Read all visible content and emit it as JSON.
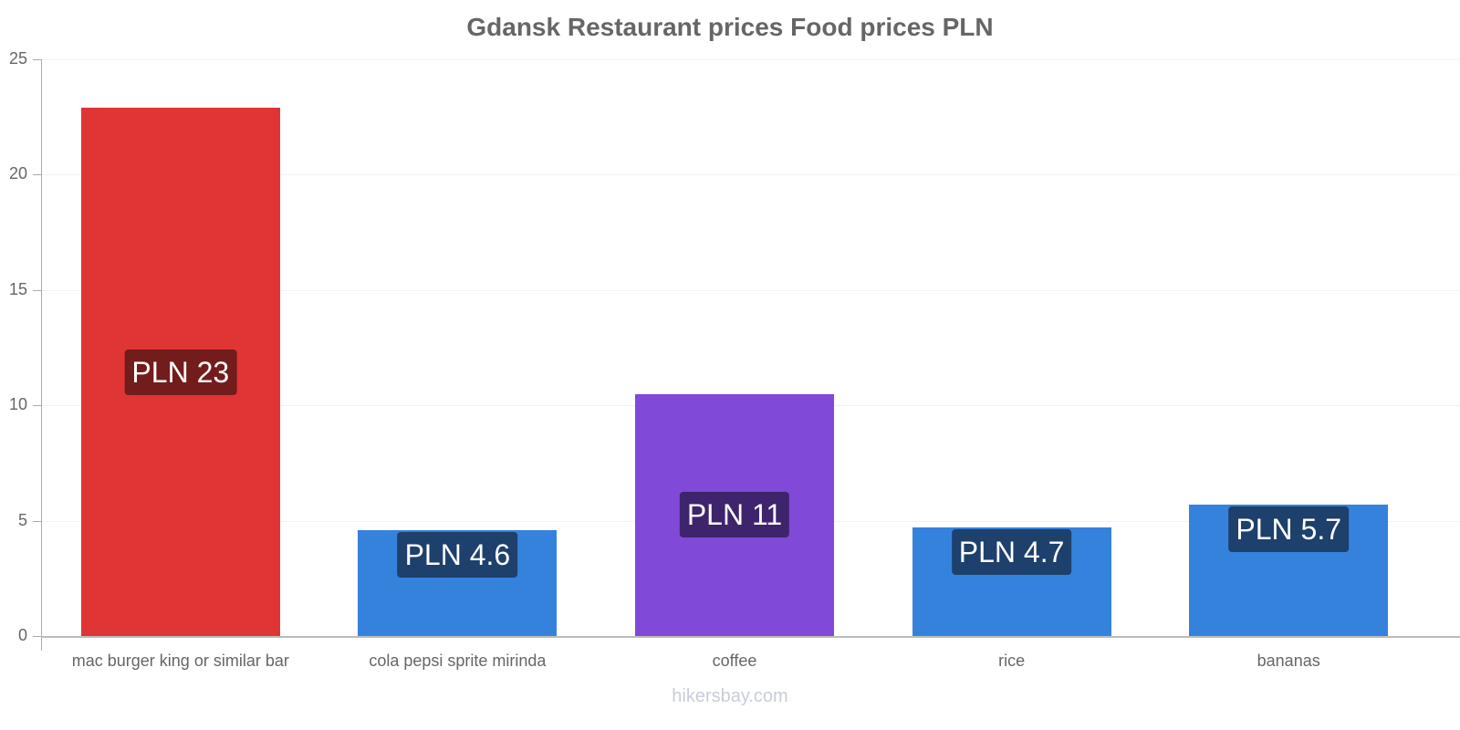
{
  "title": "Gdansk Restaurant prices Food prices PLN",
  "footer": "hikersbay.com",
  "y_ticks": [
    "0",
    "5",
    "10",
    "15",
    "20",
    "25"
  ],
  "bars": [
    {
      "category": "mac burger king or similar bar",
      "value": 22.9,
      "label": "PLN 23",
      "color": "#e03535",
      "label_bg": "#731c1c"
    },
    {
      "category": "cola pepsi sprite mirinda",
      "value": 4.6,
      "label": "PLN 4.6",
      "color": "#3582dd",
      "label_bg": "#1d406c"
    },
    {
      "category": "coffee",
      "value": 10.5,
      "label": "PLN 11",
      "color": "#8049d8",
      "label_bg": "#3d246c"
    },
    {
      "category": "rice",
      "value": 4.7,
      "label": "PLN 4.7",
      "color": "#3582dd",
      "label_bg": "#1d406c"
    },
    {
      "category": "bananas",
      "value": 5.7,
      "label": "PLN 5.7",
      "color": "#3582dd",
      "label_bg": "#1d406c"
    }
  ],
  "chart_data": {
    "type": "bar",
    "title": "Gdansk Restaurant prices Food prices PLN",
    "categories": [
      "mac burger king or similar bar",
      "cola pepsi sprite mirinda",
      "coffee",
      "rice",
      "bananas"
    ],
    "values": [
      22.9,
      4.6,
      10.5,
      4.7,
      5.7
    ],
    "data_labels": [
      "PLN 23",
      "PLN 4.6",
      "PLN 11",
      "PLN 4.7",
      "PLN 5.7"
    ],
    "xlabel": "",
    "ylabel": "",
    "ylim": [
      0,
      25
    ],
    "yticks": [
      0,
      5,
      10,
      15,
      20,
      25
    ],
    "grid": true,
    "legend": "none",
    "colors": [
      "#e03535",
      "#3582dd",
      "#8049d8",
      "#3582dd",
      "#3582dd"
    ],
    "source": "hikersbay.com"
  }
}
